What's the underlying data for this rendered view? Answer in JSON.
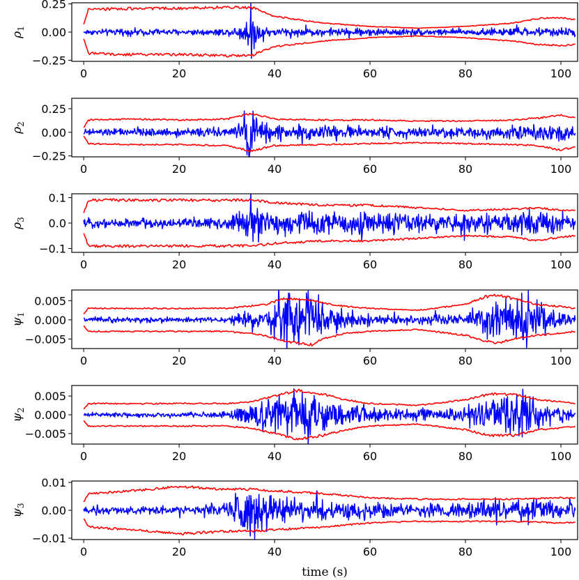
{
  "chart_data": [
    {
      "type": "line",
      "ylabel": "ρ",
      "ylabel_sub": "1",
      "xlim": [
        -2.5,
        103.5
      ],
      "ylim": [
        -0.26,
        0.26
      ],
      "xticks": [
        0,
        20,
        40,
        60,
        80,
        100
      ],
      "xtick_labels": [
        "0",
        "20",
        "40",
        "60",
        "80",
        "100"
      ],
      "yticks": [
        -0.25,
        0.0,
        0.25
      ],
      "ytick_labels": [
        "−0.25",
        "0.00",
        "0.25"
      ],
      "series": [
        {
          "role": "signal",
          "color": "#0000ff",
          "x": [
            0,
            10,
            20,
            30,
            33,
            34.5,
            35.2,
            36,
            40,
            50,
            60,
            70,
            80,
            90,
            100,
            103
          ],
          "amplitude": [
            0.02,
            0.025,
            0.022,
            0.025,
            0.05,
            0.14,
            0.22,
            0.08,
            0.03,
            0.03,
            0.028,
            0.025,
            0.025,
            0.03,
            0.03,
            0.03
          ]
        },
        {
          "role": "upper bound",
          "color": "#ff0000",
          "x": [
            0,
            1,
            10,
            20,
            30,
            35,
            40,
            50,
            60,
            70,
            80,
            90,
            95,
            100,
            103
          ],
          "y": [
            0.07,
            0.2,
            0.21,
            0.21,
            0.22,
            0.22,
            0.14,
            0.08,
            0.05,
            0.035,
            0.05,
            0.08,
            0.12,
            0.13,
            0.11
          ]
        },
        {
          "role": "lower bound",
          "color": "#ff0000",
          "x": [
            0,
            1,
            10,
            20,
            30,
            35,
            40,
            50,
            60,
            70,
            80,
            90,
            95,
            100,
            103
          ],
          "y": [
            -0.06,
            -0.19,
            -0.2,
            -0.2,
            -0.21,
            -0.21,
            -0.13,
            -0.08,
            -0.05,
            -0.035,
            -0.05,
            -0.08,
            -0.11,
            -0.12,
            -0.11
          ]
        }
      ]
    },
    {
      "type": "line",
      "ylabel": "ρ",
      "ylabel_sub": "2",
      "xlim": [
        -2.5,
        103.5
      ],
      "ylim": [
        -0.26,
        0.36
      ],
      "xticks": [
        0,
        20,
        40,
        60,
        80,
        100
      ],
      "xtick_labels": [
        "0",
        "20",
        "40",
        "60",
        "80",
        "100"
      ],
      "yticks": [
        -0.25,
        0.0,
        0.25
      ],
      "ytick_labels": [
        "−0.25",
        "0.00",
        "0.25"
      ],
      "series": [
        {
          "role": "signal",
          "color": "#0000ff",
          "x": [
            0,
            10,
            20,
            30,
            33,
            34.8,
            36,
            40,
            50,
            60,
            70,
            80,
            90,
            100,
            103
          ],
          "amplitude": [
            0.03,
            0.035,
            0.035,
            0.04,
            0.08,
            0.3,
            0.12,
            0.07,
            0.06,
            0.05,
            0.045,
            0.05,
            0.06,
            0.07,
            0.05
          ]
        },
        {
          "role": "upper bound",
          "color": "#ff0000",
          "x": [
            0,
            1,
            10,
            20,
            30,
            35,
            40,
            50,
            60,
            70,
            80,
            90,
            95,
            100,
            103
          ],
          "y": [
            0.05,
            0.13,
            0.14,
            0.13,
            0.14,
            0.2,
            0.14,
            0.13,
            0.13,
            0.12,
            0.12,
            0.13,
            0.15,
            0.18,
            0.15
          ]
        },
        {
          "role": "lower bound",
          "color": "#ff0000",
          "x": [
            0,
            1,
            10,
            20,
            30,
            35,
            40,
            50,
            60,
            70,
            80,
            90,
            95,
            100,
            103
          ],
          "y": [
            -0.04,
            -0.12,
            -0.13,
            -0.13,
            -0.14,
            -0.2,
            -0.14,
            -0.13,
            -0.12,
            -0.11,
            -0.12,
            -0.13,
            -0.14,
            -0.19,
            -0.15
          ]
        }
      ]
    },
    {
      "type": "line",
      "ylabel": "ρ",
      "ylabel_sub": "3",
      "xlim": [
        -2.5,
        103.5
      ],
      "ylim": [
        -0.115,
        0.115
      ],
      "xticks": [
        0,
        20,
        40,
        60,
        80,
        100
      ],
      "xtick_labels": [
        "0",
        "20",
        "40",
        "60",
        "80",
        "100"
      ],
      "yticks": [
        -0.1,
        0.0,
        0.1
      ],
      "ytick_labels": [
        "−0.1",
        "0.0",
        "0.1"
      ],
      "series": [
        {
          "role": "signal",
          "color": "#0000ff",
          "x": [
            0,
            10,
            20,
            30,
            34,
            35,
            38,
            45,
            50,
            60,
            70,
            80,
            90,
            95,
            100,
            103
          ],
          "amplitude": [
            0.015,
            0.015,
            0.015,
            0.02,
            0.05,
            0.08,
            0.04,
            0.035,
            0.04,
            0.035,
            0.03,
            0.03,
            0.03,
            0.04,
            0.035,
            0.02
          ]
        },
        {
          "role": "upper bound",
          "color": "#ff0000",
          "x": [
            0,
            1,
            10,
            20,
            30,
            35,
            40,
            50,
            60,
            70,
            80,
            90,
            95,
            100,
            103
          ],
          "y": [
            0.04,
            0.09,
            0.09,
            0.09,
            0.09,
            0.09,
            0.08,
            0.07,
            0.07,
            0.06,
            0.05,
            0.055,
            0.06,
            0.05,
            0.05
          ]
        },
        {
          "role": "lower bound",
          "color": "#ff0000",
          "x": [
            0,
            1,
            10,
            20,
            30,
            35,
            40,
            50,
            60,
            70,
            80,
            90,
            95,
            100,
            103
          ],
          "y": [
            -0.04,
            -0.09,
            -0.09,
            -0.09,
            -0.09,
            -0.09,
            -0.08,
            -0.07,
            -0.07,
            -0.06,
            -0.05,
            -0.055,
            -0.07,
            -0.055,
            -0.05
          ]
        }
      ]
    },
    {
      "type": "line",
      "ylabel": "ψ",
      "ylabel_sub": "1",
      "xlim": [
        -2.5,
        103.5
      ],
      "ylim": [
        -0.0075,
        0.0078
      ],
      "xticks": [
        0,
        20,
        40,
        60,
        80,
        100
      ],
      "xtick_labels": [
        "0",
        "20",
        "40",
        "60",
        "80",
        "100"
      ],
      "yticks": [
        -0.005,
        0.0,
        0.005
      ],
      "ytick_labels": [
        "−0.005",
        "0.000",
        "0.005"
      ],
      "series": [
        {
          "role": "signal",
          "color": "#0000ff",
          "x": [
            0,
            10,
            20,
            30,
            33,
            38,
            41,
            42,
            45,
            47,
            50,
            55,
            60,
            70,
            80,
            84,
            87,
            90,
            93,
            96,
            100,
            103
          ],
          "amplitude": [
            0.0005,
            0.0006,
            0.0005,
            0.0006,
            0.0015,
            0.002,
            0.005,
            0.007,
            0.005,
            0.006,
            0.004,
            0.002,
            0.0012,
            0.001,
            0.0012,
            0.003,
            0.005,
            0.004,
            0.006,
            0.003,
            0.0015,
            0.001
          ]
        },
        {
          "role": "upper bound",
          "color": "#ff0000",
          "x": [
            0,
            1,
            10,
            20,
            30,
            38,
            42,
            45,
            48,
            50,
            55,
            60,
            70,
            80,
            84,
            87,
            90,
            95,
            100,
            103
          ],
          "y": [
            0.0015,
            0.003,
            0.003,
            0.003,
            0.003,
            0.004,
            0.0055,
            0.0055,
            0.005,
            0.0045,
            0.0035,
            0.003,
            0.0025,
            0.004,
            0.006,
            0.0065,
            0.0055,
            0.004,
            0.0035,
            0.003
          ]
        },
        {
          "role": "lower bound",
          "color": "#ff0000",
          "x": [
            0,
            1,
            10,
            20,
            30,
            38,
            42,
            45,
            48,
            50,
            55,
            60,
            70,
            80,
            84,
            87,
            90,
            95,
            100,
            103
          ],
          "y": [
            -0.0015,
            -0.003,
            -0.003,
            -0.003,
            -0.003,
            -0.004,
            -0.0055,
            -0.006,
            -0.0065,
            -0.005,
            -0.0035,
            -0.003,
            -0.0025,
            -0.004,
            -0.0055,
            -0.006,
            -0.005,
            -0.004,
            -0.0035,
            -0.003
          ]
        }
      ]
    },
    {
      "type": "line",
      "ylabel": "ψ",
      "ylabel_sub": "2",
      "xlim": [
        -2.5,
        103.5
      ],
      "ylim": [
        -0.0078,
        0.0078
      ],
      "xticks": [
        0,
        20,
        40,
        60,
        80,
        100
      ],
      "xtick_labels": [
        "0",
        "20",
        "40",
        "60",
        "80",
        "100"
      ],
      "yticks": [
        -0.005,
        0.0,
        0.005
      ],
      "ytick_labels": [
        "−0.005",
        "0.000",
        "0.005"
      ],
      "series": [
        {
          "role": "signal",
          "color": "#0000ff",
          "x": [
            0,
            10,
            20,
            30,
            33,
            36,
            40,
            43,
            45,
            47,
            50,
            55,
            60,
            70,
            80,
            84,
            87,
            90,
            92,
            96,
            100,
            103
          ],
          "amplitude": [
            0.0004,
            0.0005,
            0.0005,
            0.0008,
            0.002,
            0.0025,
            0.004,
            0.005,
            0.005,
            0.0055,
            0.0035,
            0.002,
            0.0015,
            0.0012,
            0.0015,
            0.003,
            0.004,
            0.005,
            0.006,
            0.0025,
            0.0015,
            0.001
          ]
        },
        {
          "role": "upper bound",
          "color": "#ff0000",
          "x": [
            0,
            1,
            10,
            20,
            30,
            35,
            40,
            45,
            50,
            55,
            60,
            70,
            80,
            85,
            90,
            95,
            100,
            103
          ],
          "y": [
            0.0015,
            0.003,
            0.003,
            0.003,
            0.003,
            0.0035,
            0.005,
            0.0065,
            0.0055,
            0.004,
            0.003,
            0.0025,
            0.004,
            0.0055,
            0.0055,
            0.004,
            0.0035,
            0.003
          ]
        },
        {
          "role": "lower bound",
          "color": "#ff0000",
          "x": [
            0,
            1,
            10,
            20,
            30,
            35,
            40,
            45,
            50,
            55,
            60,
            70,
            80,
            85,
            90,
            95,
            100,
            103
          ],
          "y": [
            -0.0015,
            -0.003,
            -0.003,
            -0.003,
            -0.003,
            -0.0035,
            -0.005,
            -0.0065,
            -0.0055,
            -0.004,
            -0.003,
            -0.0025,
            -0.004,
            -0.0055,
            -0.0055,
            -0.004,
            -0.0035,
            -0.003
          ]
        }
      ]
    },
    {
      "type": "line",
      "ylabel": "ψ",
      "ylabel_sub": "3",
      "xlim": [
        -2.5,
        103.5
      ],
      "ylim": [
        -0.0105,
        0.0105
      ],
      "xticks": [
        0,
        20,
        40,
        60,
        80,
        100
      ],
      "xtick_labels": [
        "0",
        "20",
        "40",
        "60",
        "80",
        "100"
      ],
      "yticks": [
        -0.01,
        0.0,
        0.01
      ],
      "ytick_labels": [
        "−0.01",
        "0.00",
        "0.01"
      ],
      "xlabel": "time (s)",
      "series": [
        {
          "role": "signal",
          "color": "#0000ff",
          "x": [
            0,
            10,
            20,
            30,
            33,
            35,
            38,
            40,
            45,
            50,
            60,
            70,
            80,
            90,
            95,
            100,
            103
          ],
          "amplitude": [
            0.001,
            0.0012,
            0.0012,
            0.002,
            0.006,
            0.008,
            0.005,
            0.004,
            0.0035,
            0.003,
            0.0025,
            0.002,
            0.0025,
            0.003,
            0.0035,
            0.0025,
            0.002
          ]
        },
        {
          "role": "upper bound",
          "color": "#ff0000",
          "x": [
            0,
            1,
            10,
            20,
            25,
            30,
            35,
            40,
            50,
            60,
            70,
            80,
            90,
            100,
            103
          ],
          "y": [
            0.003,
            0.006,
            0.007,
            0.0085,
            0.008,
            0.0075,
            0.0075,
            0.007,
            0.006,
            0.0045,
            0.004,
            0.004,
            0.004,
            0.0045,
            0.0045
          ]
        },
        {
          "role": "lower bound",
          "color": "#ff0000",
          "x": [
            0,
            1,
            10,
            20,
            25,
            30,
            35,
            40,
            50,
            60,
            70,
            80,
            90,
            100,
            103
          ],
          "y": [
            -0.003,
            -0.006,
            -0.007,
            -0.0085,
            -0.008,
            -0.0075,
            -0.0075,
            -0.007,
            -0.006,
            -0.0045,
            -0.004,
            -0.004,
            -0.004,
            -0.0045,
            -0.0045
          ]
        }
      ]
    }
  ]
}
